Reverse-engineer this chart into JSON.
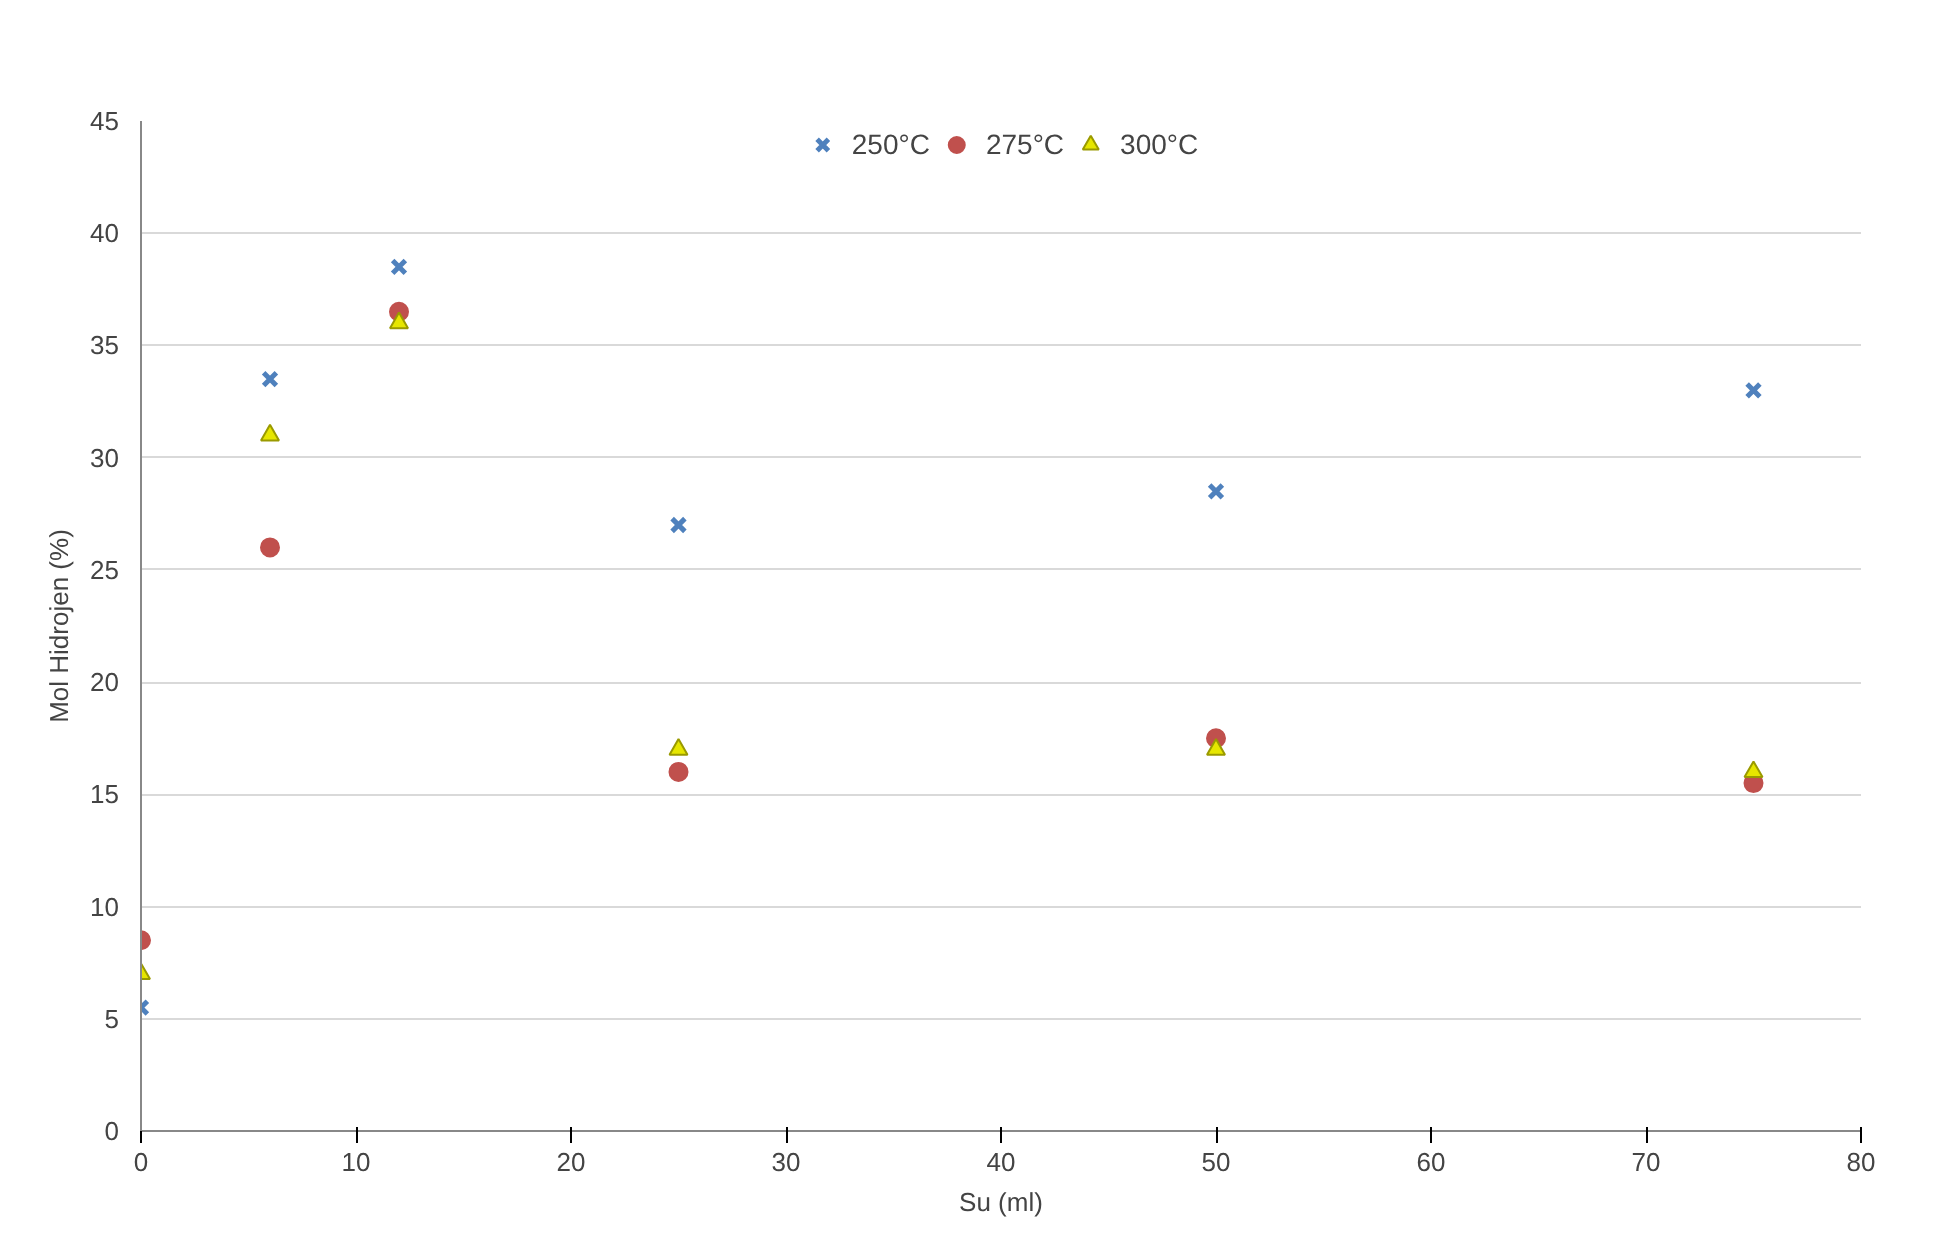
{
  "chart_data": {
    "type": "scatter",
    "xlabel": "Su (ml)",
    "ylabel": "Mol Hidrojen (%)",
    "x": [
      0,
      6,
      12,
      25,
      50,
      75
    ],
    "series": [
      {
        "name": "250°C",
        "color": "#4f81bd",
        "marker": "cross",
        "values": [
          5.5,
          33.5,
          38.5,
          27,
          28.5,
          33
        ]
      },
      {
        "name": "275°C",
        "color": "#c0504d",
        "marker": "circle",
        "values": [
          8.5,
          26,
          36.5,
          16,
          17.5,
          15.5
        ]
      },
      {
        "name": "300°C",
        "color": "#e6e600",
        "marker": "triangle",
        "values": [
          7,
          31,
          36,
          17,
          17,
          16
        ]
      }
    ],
    "xlim": [
      0,
      80
    ],
    "xticks": [
      0,
      10,
      20,
      30,
      40,
      50,
      60,
      70,
      80
    ],
    "ylim": [
      0,
      45
    ],
    "yticks": [
      0,
      5,
      10,
      15,
      20,
      25,
      30,
      35,
      40,
      45
    ],
    "grid": "y",
    "legend": "top"
  }
}
